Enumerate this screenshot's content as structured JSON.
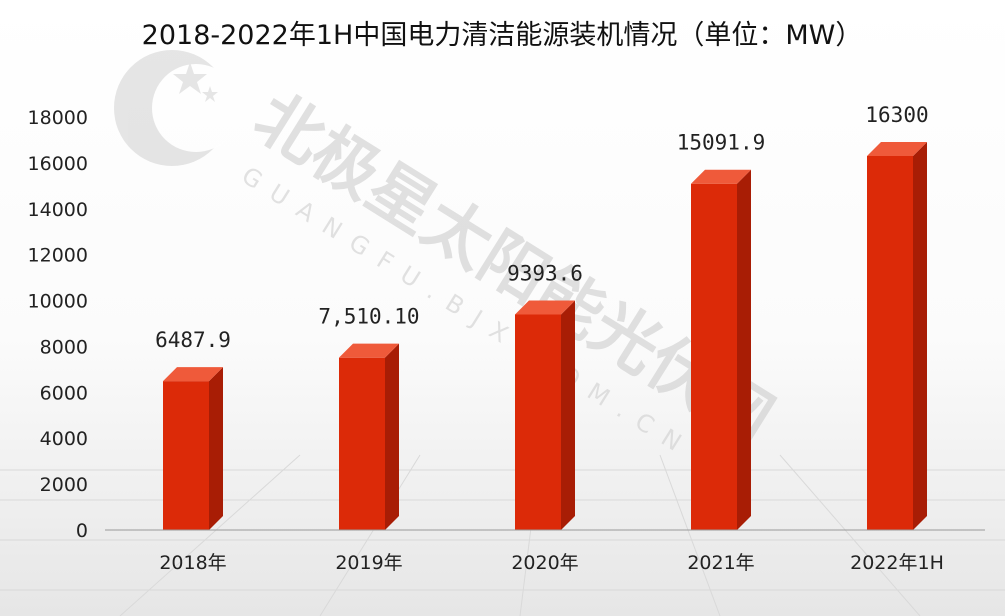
{
  "chart_data": {
    "type": "bar",
    "title": "2018-2022年1H中国电力清洁能源装机情况（单位：MW）",
    "categories": [
      "2018年",
      "2019年",
      "2020年",
      "2021年",
      "2022年1H"
    ],
    "values": [
      6487.9,
      7510.1,
      9393.6,
      15091.9,
      16300
    ],
    "data_labels": [
      "6487.9",
      "7,510.10",
      "9393.6",
      "15091.9",
      "16300"
    ],
    "yticks": [
      "0",
      "2000",
      "4000",
      "6000",
      "8000",
      "10000",
      "12000",
      "14000",
      "16000",
      "18000"
    ],
    "ylim": [
      0,
      18000
    ],
    "grid": false,
    "legend": "none",
    "colors": {
      "bar_front": "#dc2a08",
      "bar_side": "#a81d05",
      "bar_top": "#ef5a3a"
    }
  },
  "watermark": {
    "text": "北极星太阳能光伏网",
    "sub": "GUANGFU.BJX.COM.CN",
    "icon": "polaris-star-logo-icon"
  }
}
